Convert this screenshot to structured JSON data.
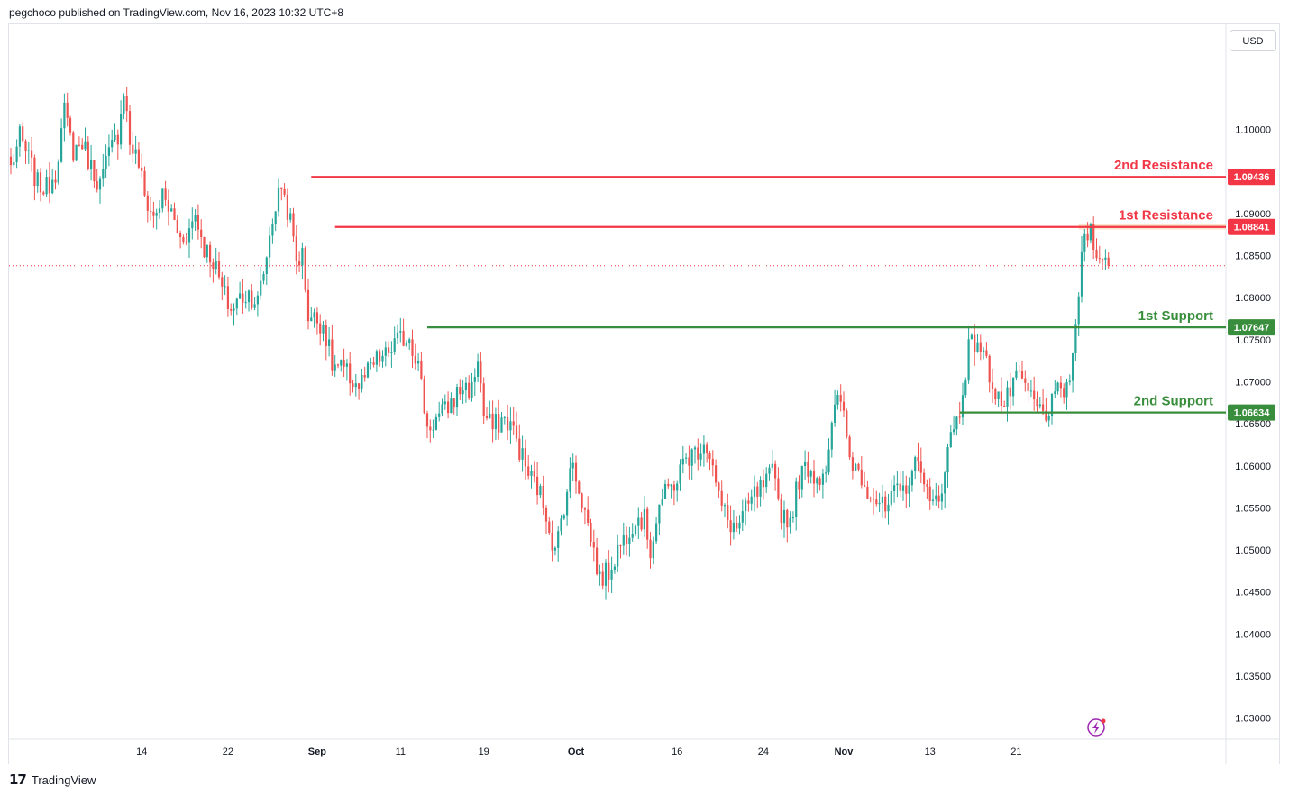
{
  "header": {
    "publisher_text": "pegchoco published on TradingView.com, Nov 16, 2023 10:32 UTC+8"
  },
  "footer": {
    "logo_glyph": "17",
    "brand": "TradingView"
  },
  "toolbar": {
    "currency": "USD"
  },
  "colors": {
    "up": "#26a69a",
    "down": "#ef5350",
    "resistance": "#f23645",
    "support": "#388e3c",
    "current_price_line": "#f23645",
    "highlight_band": "#f6d8b2",
    "grid_axis_text": "#131722"
  },
  "chart_data": {
    "type": "candlestick",
    "symbol_currency": "USD",
    "y_axis": {
      "ylim": [
        1.0275,
        1.1125
      ],
      "tick_labels": [
        "1.10000",
        "1.09500",
        "1.09000",
        "1.08500",
        "1.08000",
        "1.07500",
        "1.07000",
        "1.06500",
        "1.06000",
        "1.05500",
        "1.05000",
        "1.04500",
        "1.04000",
        "1.03500",
        "1.03000"
      ],
      "tick_values": [
        1.1,
        1.095,
        1.09,
        1.085,
        1.08,
        1.075,
        1.07,
        1.065,
        1.06,
        1.055,
        1.05,
        1.045,
        1.04,
        1.035,
        1.03
      ]
    },
    "x_axis": {
      "tick_labels": [
        "14",
        "22",
        "Sep",
        "11",
        "19",
        "Oct",
        "16",
        "24",
        "Nov",
        "13",
        "21"
      ],
      "bold_labels": [
        "Sep",
        "Oct",
        "Nov"
      ]
    },
    "levels": [
      {
        "name": "2nd Resistance",
        "value": 1.09436,
        "label": "1.09436",
        "kind": "resistance"
      },
      {
        "name": "1st Resistance",
        "value": 1.08841,
        "label": "1.08841",
        "kind": "resistance"
      },
      {
        "name": "1st Support",
        "value": 1.07647,
        "label": "1.07647",
        "kind": "support"
      },
      {
        "name": "2nd Support",
        "value": 1.06634,
        "label": "1.06634",
        "kind": "support"
      }
    ],
    "current_price": 1.0838,
    "close_path": [
      [
        0,
        1.0955
      ],
      [
        3,
        1.099
      ],
      [
        6,
        1.0965
      ],
      [
        9,
        1.0935
      ],
      [
        12,
        1.093
      ],
      [
        15,
        1.095
      ],
      [
        18,
        1.102
      ],
      [
        21,
        1.0975
      ],
      [
        24,
        1.0985
      ],
      [
        27,
        1.0955
      ],
      [
        30,
        1.0935
      ],
      [
        33,
        1.097
      ],
      [
        36,
        1.0995
      ],
      [
        38,
        1.105
      ],
      [
        40,
        1.0985
      ],
      [
        43,
        1.096
      ],
      [
        45,
        1.092
      ],
      [
        48,
        1.0895
      ],
      [
        51,
        1.092
      ],
      [
        54,
        1.09
      ],
      [
        57,
        1.087
      ],
      [
        60,
        1.088
      ],
      [
        62,
        1.09
      ],
      [
        65,
        1.086
      ],
      [
        68,
        1.0845
      ],
      [
        71,
        1.081
      ],
      [
        74,
        1.0785
      ],
      [
        77,
        1.08
      ],
      [
        80,
        1.0805
      ],
      [
        83,
        1.0795
      ],
      [
        85,
        1.083
      ],
      [
        88,
        1.0895
      ],
      [
        91,
        1.0935
      ],
      [
        94,
        1.089
      ],
      [
        96,
        1.0845
      ],
      [
        98,
        1.085
      ],
      [
        100,
        1.078
      ],
      [
        102,
        1.0775
      ],
      [
        105,
        1.077
      ],
      [
        108,
        1.072
      ],
      [
        111,
        1.0715
      ],
      [
        114,
        1.0705
      ],
      [
        117,
        1.0695
      ],
      [
        120,
        1.071
      ],
      [
        123,
        1.0725
      ],
      [
        126,
        1.073
      ],
      [
        129,
        1.0745
      ],
      [
        131,
        1.075
      ],
      [
        134,
        1.0755
      ],
      [
        137,
        1.072
      ],
      [
        140,
        1.0645
      ],
      [
        143,
        1.0655
      ],
      [
        146,
        1.0665
      ],
      [
        149,
        1.068
      ],
      [
        152,
        1.0695
      ],
      [
        155,
        1.069
      ],
      [
        157,
        1.073
      ],
      [
        159,
        1.066
      ],
      [
        162,
        1.0645
      ],
      [
        165,
        1.0655
      ],
      [
        168,
        1.065
      ],
      [
        171,
        1.062
      ],
      [
        174,
        1.059
      ],
      [
        177,
        1.0575
      ],
      [
        180,
        1.0545
      ],
      [
        183,
        1.0495
      ],
      [
        186,
        1.0555
      ],
      [
        189,
        1.0605
      ],
      [
        192,
        1.056
      ],
      [
        195,
        1.0515
      ],
      [
        198,
        1.0465
      ],
      [
        201,
        1.0475
      ],
      [
        204,
        1.05
      ],
      [
        207,
        1.052
      ],
      [
        210,
        1.054
      ],
      [
        213,
        1.0535
      ],
      [
        215,
        1.05
      ],
      [
        218,
        1.0555
      ],
      [
        221,
        1.057
      ],
      [
        224,
        1.0585
      ],
      [
        227,
        1.061
      ],
      [
        230,
        1.0615
      ],
      [
        233,
        1.063
      ],
      [
        235,
        1.0615
      ],
      [
        238,
        1.056
      ],
      [
        241,
        1.0535
      ],
      [
        244,
        1.0525
      ],
      [
        247,
        1.0545
      ],
      [
        250,
        1.0565
      ],
      [
        253,
        1.0575
      ],
      [
        256,
        1.059
      ],
      [
        259,
        1.0545
      ],
      [
        262,
        1.0535
      ],
      [
        265,
        1.0585
      ],
      [
        268,
        1.06
      ],
      [
        271,
        1.0585
      ],
      [
        274,
        1.06
      ],
      [
        277,
        1.0665
      ],
      [
        279,
        1.068
      ],
      [
        282,
        1.061
      ],
      [
        285,
        1.0595
      ],
      [
        288,
        1.0575
      ],
      [
        291,
        1.056
      ],
      [
        294,
        1.0545
      ],
      [
        297,
        1.0565
      ],
      [
        300,
        1.057
      ],
      [
        303,
        1.0595
      ],
      [
        306,
        1.0605
      ],
      [
        309,
        1.055
      ],
      [
        312,
        1.056
      ],
      [
        314,
        1.06
      ],
      [
        316,
        1.0635
      ],
      [
        319,
        1.0665
      ],
      [
        322,
        1.074
      ],
      [
        325,
        1.075
      ],
      [
        328,
        1.072
      ],
      [
        331,
        1.069
      ],
      [
        334,
        1.067
      ],
      [
        337,
        1.07
      ],
      [
        340,
        1.07
      ],
      [
        343,
        1.068
      ],
      [
        346,
        1.0665
      ],
      [
        349,
        1.0665
      ],
      [
        352,
        1.0685
      ],
      [
        355,
        1.0695
      ],
      [
        357,
        1.072
      ],
      [
        359,
        1.081
      ],
      [
        361,
        1.0875
      ],
      [
        363,
        1.088
      ],
      [
        365,
        1.086
      ],
      [
        367,
        1.084
      ],
      [
        369,
        1.0838
      ]
    ],
    "x_tick_bars": [
      44,
      73,
      103,
      131,
      159,
      190,
      224,
      253,
      280,
      309,
      338
    ],
    "n_bars": 370,
    "annotations": [
      "2nd Resistance",
      "1st Resistance",
      "1st Support",
      "2nd Support"
    ]
  }
}
